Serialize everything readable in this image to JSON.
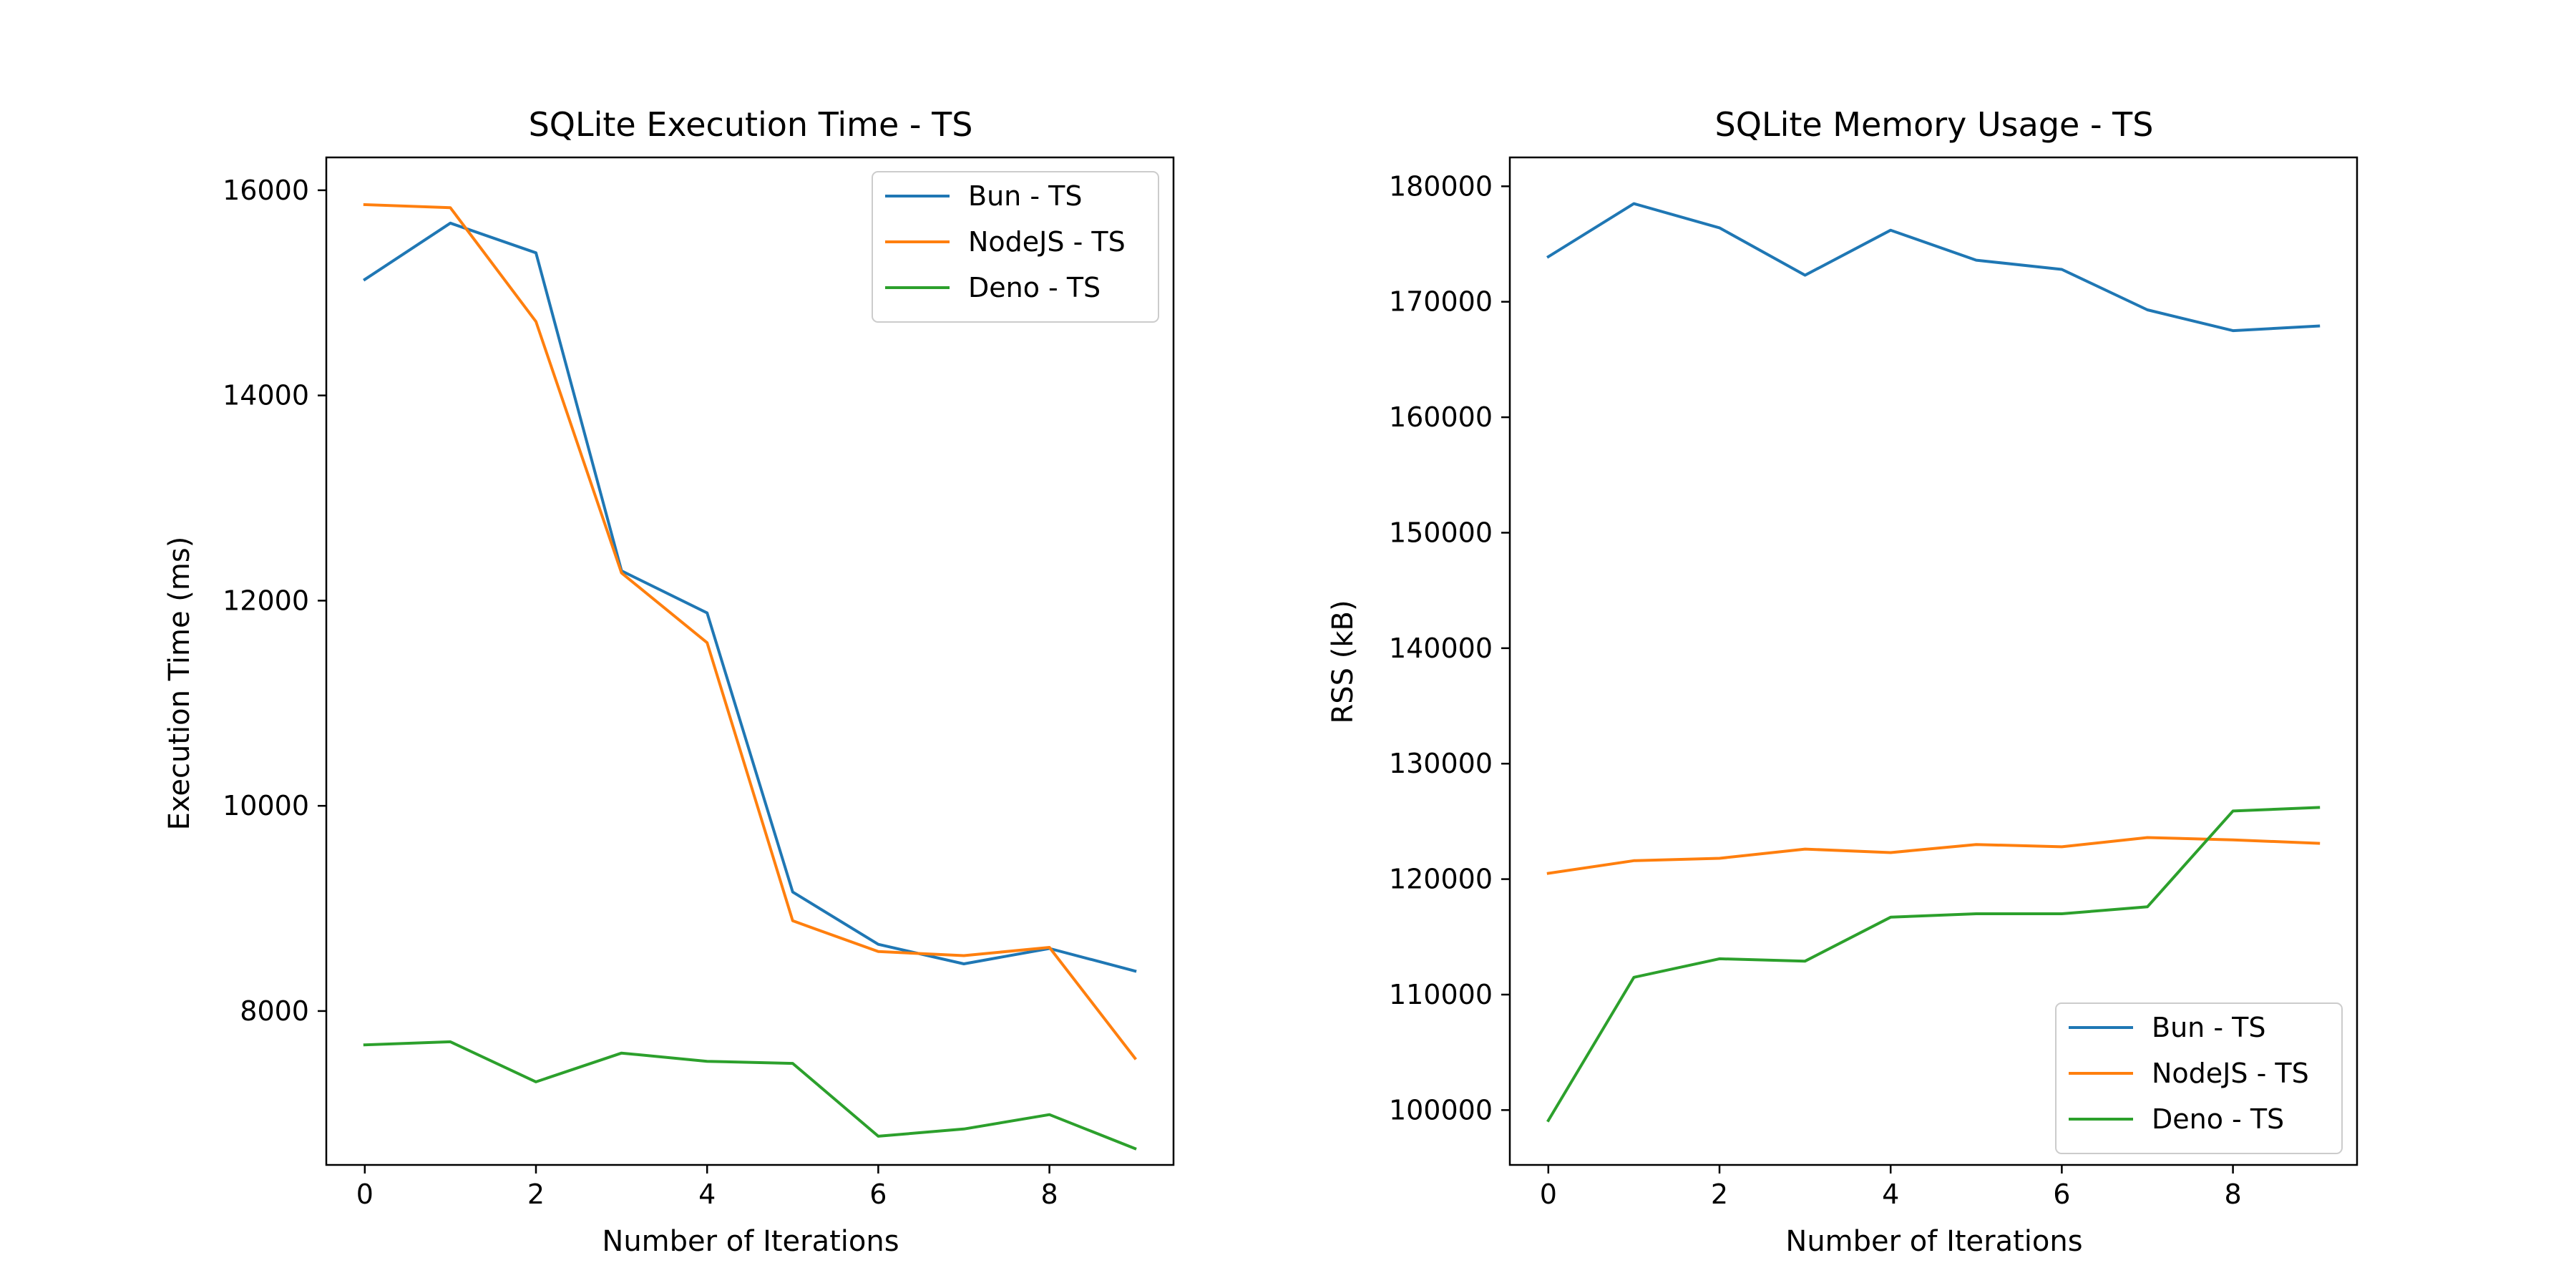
{
  "chart_data": [
    {
      "type": "line",
      "title": "SQLite Execution Time - TS",
      "xlabel": "Number of Iterations",
      "ylabel": "Execution Time (ms)",
      "xlim": [
        -0.45,
        9.45
      ],
      "ylim": [
        6500,
        16320
      ],
      "xticks": [
        0,
        2,
        4,
        6,
        8
      ],
      "yticks": [
        8000,
        10000,
        12000,
        14000,
        16000
      ],
      "legend": "upper right",
      "x": [
        0,
        1,
        2,
        3,
        4,
        5,
        6,
        7,
        8,
        9
      ],
      "series": [
        {
          "name": "Bun - TS",
          "color": "#1f77b4",
          "values": [
            15130,
            15680,
            15390,
            12290,
            11880,
            9160,
            8650,
            8460,
            8610,
            8390
          ]
        },
        {
          "name": "NodeJS - TS",
          "color": "#ff7f0e",
          "values": [
            15860,
            15830,
            14720,
            12270,
            11590,
            8880,
            8580,
            8540,
            8620,
            7540
          ]
        },
        {
          "name": "Deno - TS",
          "color": "#2ca02c",
          "values": [
            7670,
            7700,
            7310,
            7590,
            7510,
            7490,
            6780,
            6850,
            6990,
            6660
          ]
        }
      ]
    },
    {
      "type": "line",
      "title": "SQLite Memory Usage - TS",
      "xlabel": "Number of Iterations",
      "ylabel": "RSS (kB)",
      "xlim": [
        -0.45,
        9.45
      ],
      "ylim": [
        95250,
        182500
      ],
      "xticks": [
        0,
        2,
        4,
        6,
        8
      ],
      "yticks": [
        100000,
        110000,
        120000,
        130000,
        140000,
        150000,
        160000,
        170000,
        180000
      ],
      "legend": "lower right",
      "x": [
        0,
        1,
        2,
        3,
        4,
        5,
        6,
        7,
        8,
        9
      ],
      "series": [
        {
          "name": "Bun - TS",
          "color": "#1f77b4",
          "values": [
            173900,
            178500,
            176400,
            172300,
            176200,
            173600,
            172800,
            169300,
            167500,
            167900
          ]
        },
        {
          "name": "NodeJS - TS",
          "color": "#ff7f0e",
          "values": [
            120500,
            121600,
            121800,
            122600,
            122300,
            123000,
            122800,
            123600,
            123400,
            123100
          ]
        },
        {
          "name": "Deno - TS",
          "color": "#2ca02c",
          "values": [
            99100,
            111500,
            113100,
            112900,
            116700,
            117000,
            117000,
            117600,
            125900,
            126200
          ]
        }
      ]
    }
  ]
}
